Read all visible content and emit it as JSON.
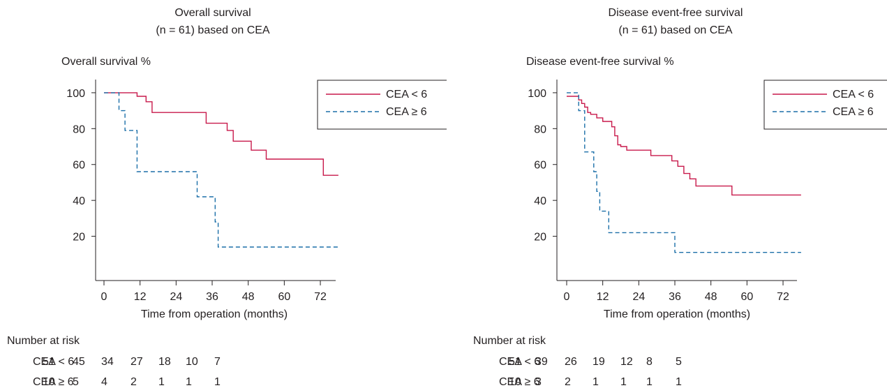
{
  "chart_data": [
    {
      "type": "line",
      "title": [
        "Overall survival",
        "(n = 61) based on CEA"
      ],
      "ylabel": "Overall survival %",
      "xlabel": "Time from operation (months)",
      "x_ticks": [
        0,
        12,
        24,
        36,
        48,
        60,
        72
      ],
      "y_ticks": [
        20,
        40,
        60,
        80,
        100
      ],
      "xlim": [
        -3,
        78
      ],
      "ylim": [
        0,
        105
      ],
      "legend_position": "top-right",
      "series": [
        {
          "name": "CEA < 6",
          "color": "#c8194b",
          "dash": "solid",
          "x": [
            0,
            4,
            9,
            11,
            14,
            16,
            33,
            34,
            39,
            41,
            43,
            49,
            54,
            57,
            73,
            78
          ],
          "y": [
            100,
            100,
            100,
            98,
            95,
            89,
            89,
            83,
            83,
            79,
            73,
            68,
            63,
            63,
            54,
            54
          ]
        },
        {
          "name": "CEA ≥ 6",
          "color": "#1b6fa8",
          "dash": "dashed",
          "x": [
            0,
            3,
            5,
            7,
            9,
            11,
            22,
            30,
            31,
            36,
            37,
            38,
            78
          ],
          "y": [
            100,
            100,
            90,
            79,
            79,
            56,
            56,
            56,
            42,
            42,
            28,
            14,
            14
          ]
        }
      ],
      "risk_table": {
        "label": "Number at risk",
        "rows": [
          {
            "name": "CEA < 6",
            "values": [
              "51",
              "45",
              "34",
              "27",
              "18",
              "10",
              "7"
            ]
          },
          {
            "name": "CEA ≥ 6",
            "values": [
              "10",
              "5",
              "4",
              "2",
              "1",
              "1",
              "1"
            ]
          }
        ]
      }
    },
    {
      "type": "line",
      "title": [
        "Disease event-free survival",
        "(n = 61) based on CEA"
      ],
      "ylabel": "Disease event-free survival %",
      "xlabel": "Time from operation (months)",
      "x_ticks": [
        0,
        12,
        24,
        36,
        48,
        60,
        72
      ],
      "y_ticks": [
        20,
        40,
        60,
        80,
        100
      ],
      "xlim": [
        -3,
        78
      ],
      "ylim": [
        0,
        105
      ],
      "legend_position": "top-right",
      "series": [
        {
          "name": "CEA < 6",
          "color": "#c8194b",
          "dash": "solid",
          "x": [
            0,
            2,
            4,
            5,
            6,
            7,
            8,
            10,
            12,
            15,
            16,
            17,
            18,
            20,
            28,
            35,
            37,
            39,
            41,
            43,
            55,
            78
          ],
          "y": [
            98,
            98,
            96,
            94,
            92,
            89,
            88,
            86,
            84,
            81,
            76,
            71,
            70,
            68,
            65,
            62,
            59,
            55,
            52,
            48,
            43,
            43
          ]
        },
        {
          "name": "CEA ≥ 6",
          "color": "#1b6fa8",
          "dash": "dashed",
          "x": [
            0,
            2,
            4,
            6,
            8,
            9,
            10,
            11,
            12,
            14,
            30,
            36,
            78
          ],
          "y": [
            100,
            100,
            90,
            67,
            67,
            56,
            45,
            34,
            34,
            22,
            22,
            11,
            11
          ]
        }
      ],
      "risk_table": {
        "label": "Number at risk",
        "rows": [
          {
            "name": "CEA < 6",
            "values": [
              "51",
              "39",
              "26",
              "19",
              "12",
              "8",
              "5"
            ]
          },
          {
            "name": "CEA ≥ 6",
            "values": [
              "10",
              "3",
              "2",
              "1",
              "1",
              "1",
              "1"
            ]
          }
        ]
      }
    }
  ]
}
